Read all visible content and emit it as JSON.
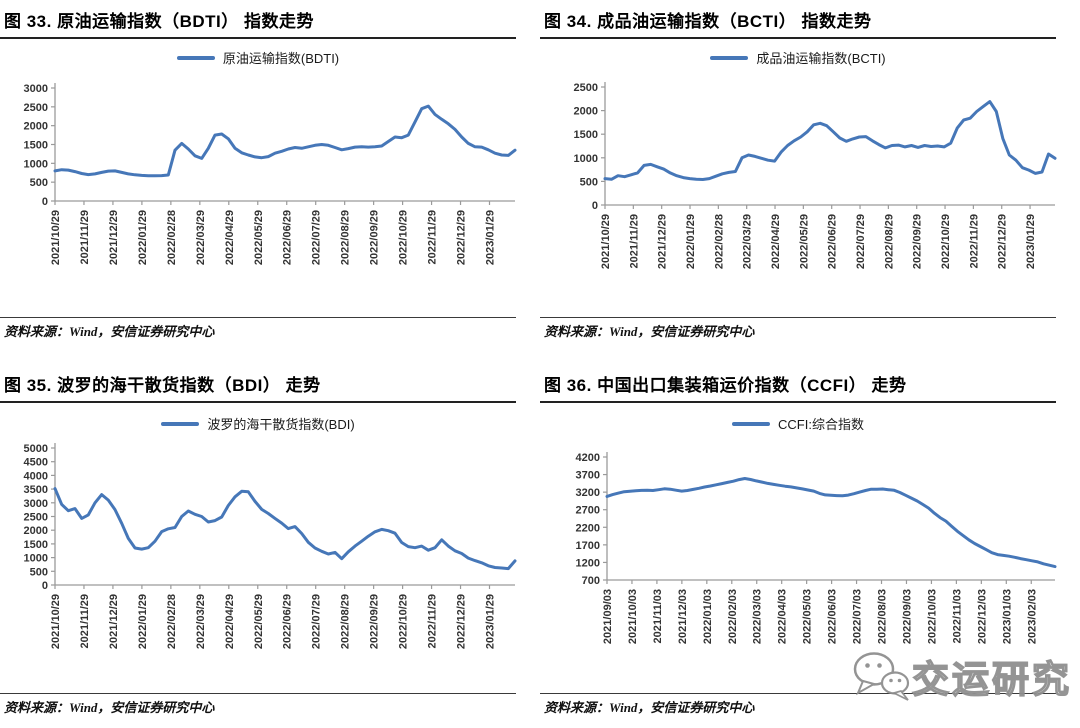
{
  "watermark": {
    "text": "交运研究",
    "icon": "wechat-bubbles-icon"
  },
  "chart_data": [
    {
      "type": "line",
      "title": "图 33. 原油运输指数（BDTI） 指数走势",
      "legend": "原油运输指数(BDTI)",
      "source": "资料来源：Wind，安信证券研究中心",
      "line_color": "#4677b8",
      "grid": false,
      "legend_position": "top",
      "ylim": [
        0,
        3000
      ],
      "ystep": 500,
      "x_labels": [
        "2021/10/29",
        "2021/11/29",
        "2021/12/29",
        "2022/01/29",
        "2022/02/28",
        "2022/03/29",
        "2022/04/29",
        "2022/05/29",
        "2022/06/29",
        "2022/07/29",
        "2022/08/29",
        "2022/09/29",
        "2022/10/29",
        "2022/11/29",
        "2022/12/29",
        "2023/01/29"
      ],
      "values": [
        800,
        830,
        820,
        780,
        730,
        700,
        720,
        760,
        795,
        800,
        760,
        720,
        695,
        680,
        670,
        670,
        675,
        690,
        1350,
        1530,
        1380,
        1200,
        1130,
        1400,
        1750,
        1780,
        1650,
        1400,
        1280,
        1220,
        1170,
        1150,
        1180,
        1270,
        1320,
        1380,
        1420,
        1400,
        1440,
        1480,
        1500,
        1480,
        1420,
        1360,
        1390,
        1430,
        1440,
        1430,
        1440,
        1460,
        1580,
        1700,
        1680,
        1750,
        2100,
        2450,
        2520,
        2300,
        2170,
        2050,
        1900,
        1700,
        1530,
        1440,
        1430,
        1360,
        1270,
        1220,
        1210,
        1350
      ]
    },
    {
      "type": "line",
      "title": "图 34. 成品油运输指数（BCTI） 指数走势",
      "legend": "成品油运输指数(BCTI)",
      "source": "资料来源：Wind，安信证券研究中心",
      "line_color": "#4677b8",
      "grid": false,
      "legend_position": "top",
      "ylim": [
        0,
        2500
      ],
      "ystep": 500,
      "x_labels": [
        "2021/10/29",
        "2021/11/29",
        "2021/12/29",
        "2022/01/29",
        "2022/02/28",
        "2022/03/29",
        "2022/04/29",
        "2022/05/29",
        "2022/06/29",
        "2022/07/29",
        "2022/08/29",
        "2022/09/29",
        "2022/10/29",
        "2022/11/29",
        "2022/12/29",
        "2023/01/29"
      ],
      "values": [
        560,
        545,
        620,
        600,
        640,
        680,
        840,
        860,
        810,
        760,
        680,
        620,
        580,
        560,
        545,
        540,
        560,
        610,
        660,
        690,
        710,
        1000,
        1060,
        1030,
        990,
        950,
        930,
        1120,
        1260,
        1360,
        1440,
        1550,
        1700,
        1730,
        1680,
        1550,
        1420,
        1350,
        1400,
        1440,
        1450,
        1360,
        1280,
        1210,
        1260,
        1270,
        1230,
        1260,
        1220,
        1260,
        1240,
        1250,
        1230,
        1310,
        1630,
        1800,
        1840,
        1980,
        2090,
        2190,
        1980,
        1410,
        1060,
        950,
        790,
        740,
        670,
        700,
        1080,
        990
      ]
    },
    {
      "type": "line",
      "title": "图 35. 波罗的海干散货指数（BDI） 走势",
      "legend": "波罗的海干散货指数(BDI)",
      "source": "资料来源：Wind，安信证券研究中心",
      "line_color": "#4677b8",
      "grid": false,
      "legend_position": "top",
      "ylim": [
        0,
        5000
      ],
      "ystep": 500,
      "x_labels": [
        "2021/10/29",
        "2021/11/29",
        "2021/12/29",
        "2022/01/29",
        "2022/02/28",
        "2022/03/29",
        "2022/04/29",
        "2022/05/29",
        "2022/06/29",
        "2022/07/29",
        "2022/08/29",
        "2022/09/29",
        "2022/10/29",
        "2022/11/29",
        "2022/12/29",
        "2023/01/29"
      ],
      "values": [
        3520,
        2940,
        2710,
        2790,
        2430,
        2560,
        3000,
        3300,
        3100,
        2750,
        2250,
        1700,
        1350,
        1310,
        1360,
        1600,
        1950,
        2050,
        2100,
        2500,
        2700,
        2580,
        2500,
        2300,
        2350,
        2480,
        2900,
        3220,
        3420,
        3400,
        3050,
        2760,
        2610,
        2430,
        2260,
        2060,
        2130,
        1880,
        1560,
        1350,
        1230,
        1130,
        1190,
        960,
        1210,
        1420,
        1600,
        1780,
        1940,
        2030,
        1980,
        1890,
        1550,
        1400,
        1360,
        1420,
        1270,
        1360,
        1650,
        1420,
        1250,
        1150,
        980,
        890,
        810,
        700,
        640,
        620,
        600,
        880
      ]
    },
    {
      "type": "line",
      "title": "图 36. 中国出口集装箱运价指数（CCFI） 走势",
      "legend": "CCFI:综合指数",
      "source": "资料来源：Wind，安信证券研究中心",
      "line_color": "#4677b8",
      "grid": false,
      "legend_position": "top",
      "ylim": [
        700,
        4200
      ],
      "ystep": 500,
      "x_labels": [
        "2021/09/03",
        "2021/10/03",
        "2021/11/03",
        "2021/12/03",
        "2022/01/03",
        "2022/02/03",
        "2022/03/03",
        "2022/04/03",
        "2022/05/03",
        "2022/06/03",
        "2022/07/03",
        "2022/08/03",
        "2022/09/03",
        "2022/10/03",
        "2022/11/03",
        "2022/12/03",
        "2023/01/03",
        "2023/02/03"
      ],
      "values": [
        3079,
        3129,
        3174,
        3212,
        3224,
        3237,
        3250,
        3255,
        3247,
        3269,
        3296,
        3283,
        3254,
        3231,
        3246,
        3278,
        3310,
        3346,
        3376,
        3410,
        3444,
        3478,
        3512,
        3556,
        3588,
        3559,
        3521,
        3487,
        3448,
        3419,
        3395,
        3370,
        3348,
        3320,
        3291,
        3262,
        3230,
        3164,
        3121,
        3111,
        3101,
        3096,
        3115,
        3155,
        3202,
        3246,
        3285,
        3280,
        3289,
        3270,
        3252,
        3190,
        3111,
        3030,
        2949,
        2847,
        2747,
        2602,
        2475,
        2375,
        2230,
        2086,
        1963,
        1843,
        1740,
        1653,
        1564,
        1478,
        1423,
        1399,
        1377,
        1345,
        1308,
        1277,
        1246,
        1216,
        1160,
        1120,
        1082
      ]
    }
  ]
}
